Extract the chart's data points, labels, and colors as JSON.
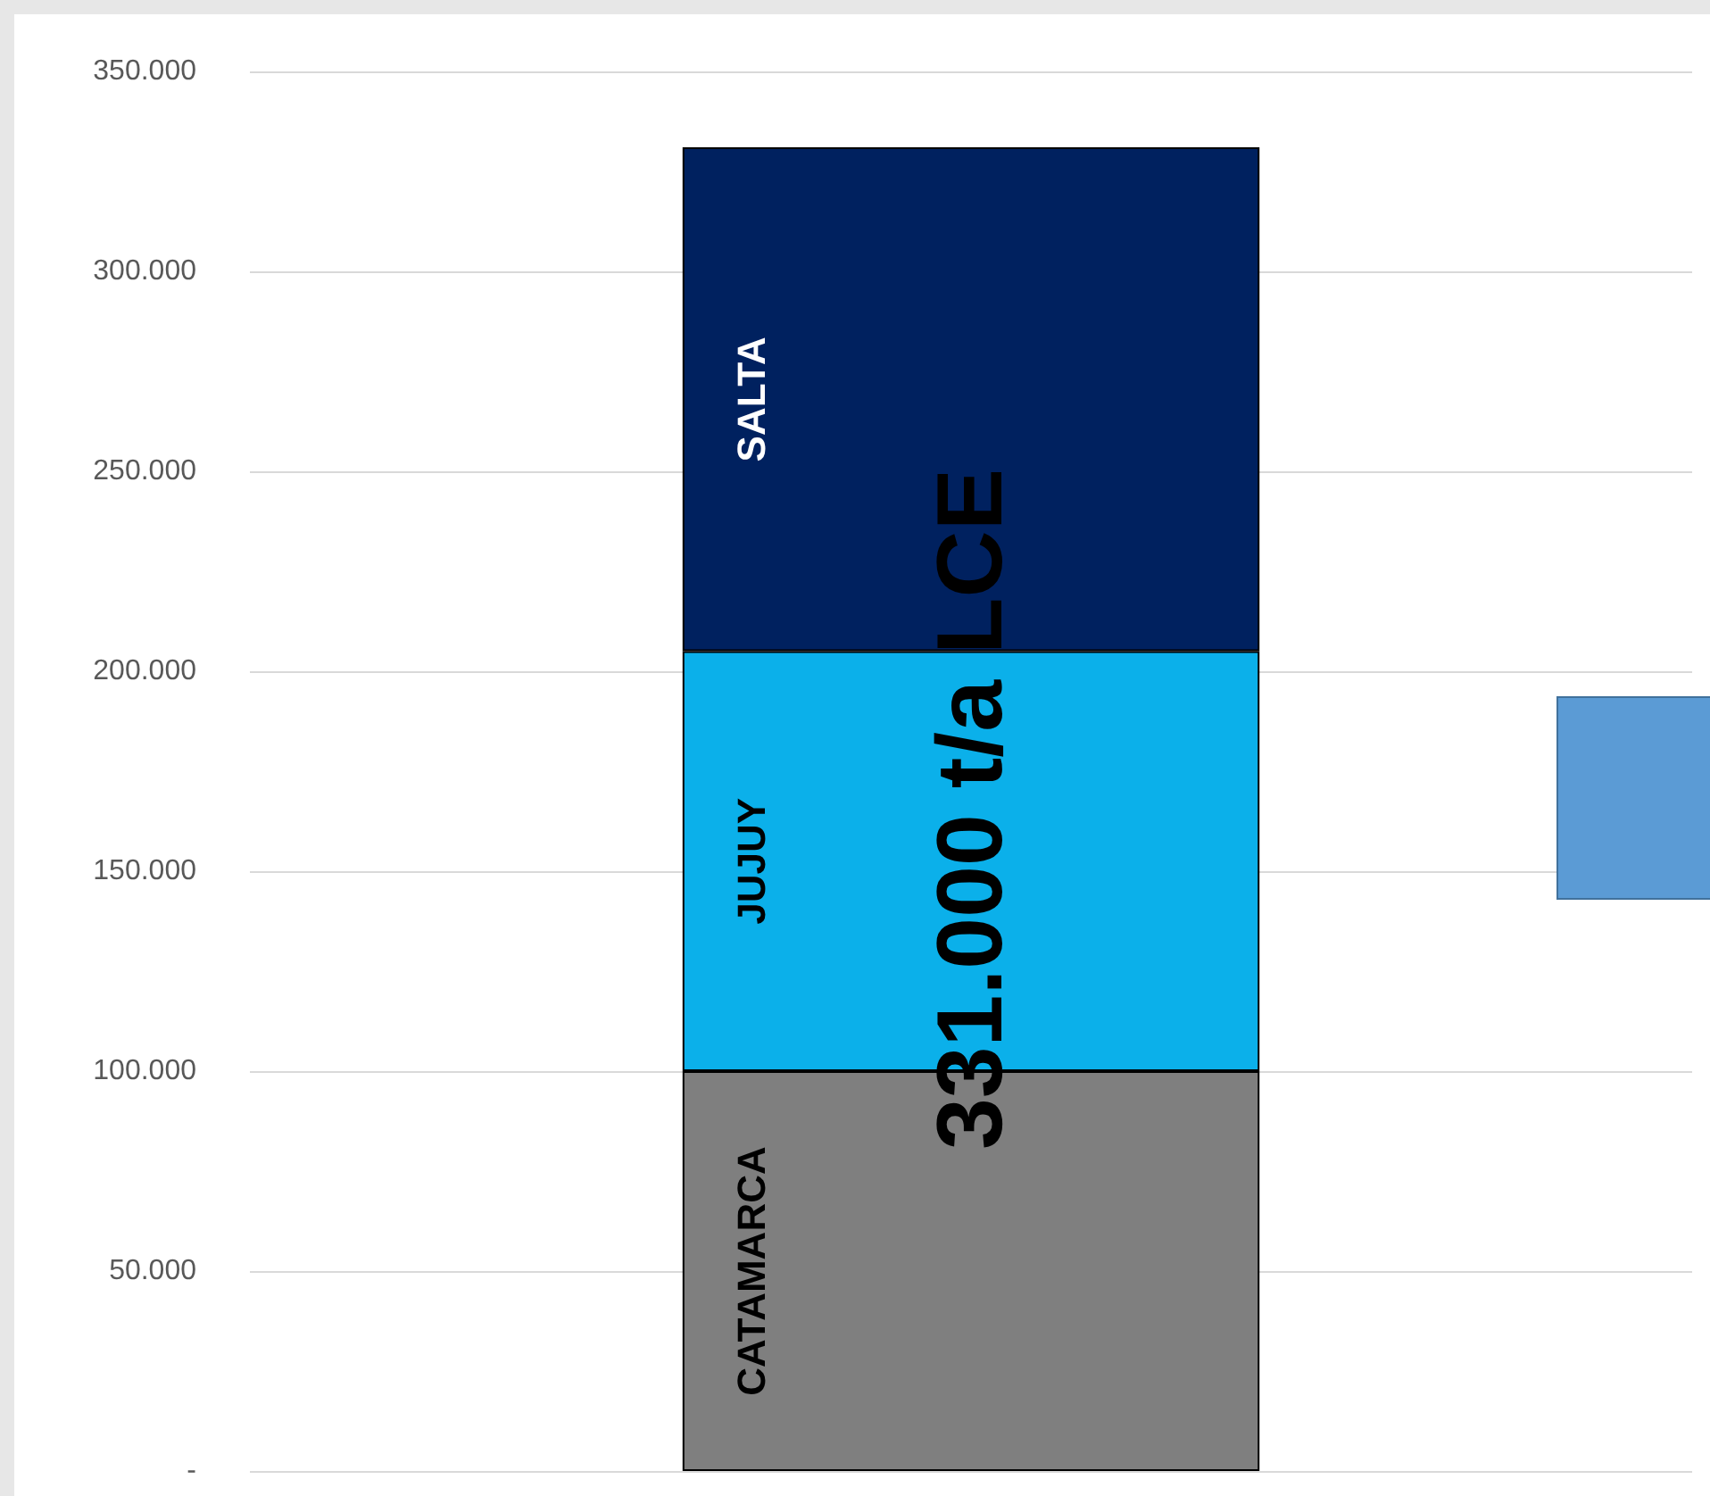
{
  "chart_data": {
    "type": "bar",
    "stacked": true,
    "categories": [
      null
    ],
    "series": [
      {
        "name": "CATAMARCA",
        "color": "#7f7f7f",
        "values": [
          100000
        ]
      },
      {
        "name": "JUJUY",
        "color": "#0bb0ea",
        "values": [
          105000
        ]
      },
      {
        "name": "SALTA",
        "color": "#00215f",
        "values": [
          126000
        ]
      }
    ],
    "totals": [
      "331.000 t/a LCE"
    ],
    "ylim": [
      0,
      350000
    ],
    "yticks": [
      {
        "value": 0,
        "label": "-"
      },
      {
        "value": 50000,
        "label": "50.000"
      },
      {
        "value": 100000,
        "label": "100.000"
      },
      {
        "value": 150000,
        "label": "150.000"
      },
      {
        "value": 200000,
        "label": "200.000"
      },
      {
        "value": 250000,
        "label": "250.000"
      },
      {
        "value": 300000,
        "label": "300.000"
      },
      {
        "value": 350000,
        "label": "350.000"
      }
    ],
    "grid": "y",
    "legend": false
  }
}
